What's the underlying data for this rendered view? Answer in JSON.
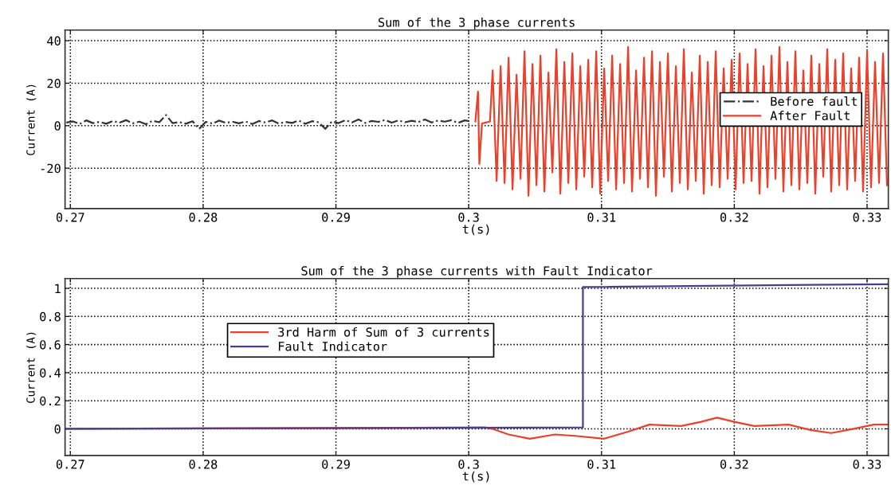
{
  "chart_data": [
    {
      "type": "line",
      "title": "Sum of the 3 phase currents",
      "xlabel": "t(s)",
      "ylabel": "Current (A)",
      "xlim": [
        0.2696,
        0.3316
      ],
      "xticks": [
        0.27,
        0.28,
        0.29,
        0.3,
        0.31,
        0.32,
        0.33
      ],
      "ylim": [
        -39,
        45
      ],
      "yticks": [
        -20,
        0,
        20,
        40
      ],
      "grid": true,
      "legend": "right",
      "series": [
        {
          "name": "Before fault",
          "color": "#333333",
          "line_style": "dashdot",
          "x": [
            0.2697,
            0.2702,
            0.2707,
            0.2712,
            0.2717,
            0.2722,
            0.2727,
            0.2732,
            0.2737,
            0.2742,
            0.2747,
            0.2752,
            0.2757,
            0.2762,
            0.2767,
            0.2772,
            0.2777,
            0.2782,
            0.2787,
            0.2792,
            0.2797,
            0.2802,
            0.2807,
            0.2812,
            0.2817,
            0.2822,
            0.2827,
            0.2832,
            0.2837,
            0.2842,
            0.2847,
            0.2852,
            0.2857,
            0.2862,
            0.2867,
            0.2872,
            0.2877,
            0.2882,
            0.2887,
            0.2892,
            0.2897,
            0.2902,
            0.2907,
            0.2912,
            0.2917,
            0.2922,
            0.2927,
            0.2932,
            0.2937,
            0.2942,
            0.2947,
            0.2952,
            0.2957,
            0.2962,
            0.2967,
            0.2972,
            0.2977,
            0.2982,
            0.2987,
            0.2992,
            0.2997,
            0.3002
          ],
          "values": [
            1.5,
            2,
            0.8,
            2.5,
            1.2,
            1.8,
            0.9,
            2.2,
            1.4,
            2.6,
            1.1,
            1.9,
            0.7,
            2.3,
            1.6,
            5,
            1.2,
            1.7,
            0.9,
            2.1,
            -1.5,
            1.8,
            1.0,
            2.4,
            1.3,
            1.9,
            1.1,
            2.0,
            0.8,
            2.2,
            1.5,
            2.5,
            1.0,
            1.8,
            1.3,
            2.4,
            0.9,
            2.1,
            1.6,
            -1.5,
            2.0,
            1.2,
            2.6,
            1.5,
            2.9,
            1.3,
            2.2,
            1.8,
            2.7,
            1.4,
            2.5,
            1.6,
            2.3,
            1.7,
            2.9,
            1.5,
            2.4,
            1.9,
            2.6,
            1.3,
            2.5,
            2.0
          ]
        },
        {
          "name": "After Fault",
          "color": "#e8412c",
          "line_style": "solid",
          "x": [
            0.3005,
            0.3007,
            0.3008,
            0.301,
            0.3016,
            0.3018,
            0.3021,
            0.3024,
            0.3027,
            0.303,
            0.3033,
            0.3036,
            0.3039,
            0.3042,
            0.3045,
            0.3048,
            0.3051,
            0.3054,
            0.3057,
            0.306,
            0.3063,
            0.3066,
            0.3069,
            0.3072,
            0.3075,
            0.3078,
            0.3081,
            0.3084,
            0.3087,
            0.309,
            0.3093,
            0.3096,
            0.3099,
            0.3102,
            0.3105,
            0.3108,
            0.3111,
            0.3114,
            0.3117,
            0.312,
            0.3123,
            0.3126,
            0.3129,
            0.3132,
            0.3135,
            0.3138,
            0.3141,
            0.3144,
            0.3147,
            0.315,
            0.3153,
            0.3156,
            0.3159,
            0.3162,
            0.3165,
            0.3168,
            0.3171,
            0.3174,
            0.3177,
            0.318,
            0.3183,
            0.3186,
            0.3189,
            0.3192,
            0.3195,
            0.3198,
            0.3201,
            0.3204,
            0.3207,
            0.321,
            0.3213,
            0.3216,
            0.3219,
            0.3222,
            0.3225,
            0.3228,
            0.3231,
            0.3234,
            0.3237,
            0.324,
            0.3243,
            0.3246,
            0.3249,
            0.3252,
            0.3255,
            0.3258,
            0.3261,
            0.3264,
            0.3267,
            0.327,
            0.3273,
            0.3276,
            0.3279,
            0.3282,
            0.3285,
            0.3288,
            0.3291,
            0.3294,
            0.3297,
            0.33,
            0.3303,
            0.3306,
            0.3309,
            0.3312,
            0.3315
          ],
          "values": [
            2,
            16,
            -18,
            1,
            2,
            26,
            -26,
            28,
            -27,
            32,
            -30,
            24,
            -25,
            35,
            -33,
            29,
            -28,
            33,
            -31,
            25,
            -22,
            36,
            -32,
            30,
            -27,
            34,
            -30,
            28,
            -24,
            31,
            -29,
            35,
            -32,
            27,
            -26,
            33,
            -30,
            29,
            -27,
            37,
            -31,
            26,
            -25,
            32,
            -29,
            35,
            -33,
            30,
            -24,
            34,
            -31,
            28,
            -27,
            36,
            -30,
            25,
            -26,
            33,
            -32,
            30,
            -28,
            35,
            -29,
            27,
            -25,
            31,
            -30,
            34,
            -27,
            29,
            -26,
            36,
            -32,
            28,
            -29,
            33,
            -25,
            37,
            -31,
            30,
            -28,
            35,
            -30,
            26,
            -27,
            33,
            -32,
            29,
            -24,
            36,
            -31,
            31,
            -28,
            34,
            -30,
            27,
            -26,
            32,
            -31,
            35,
            -29,
            30,
            -27,
            34,
            -28
          ]
        }
      ]
    },
    {
      "type": "line",
      "title": "Sum of the 3 phase currents with Fault Indicator",
      "xlabel": "t(s)",
      "ylabel": "Current (A)",
      "xlim": [
        0.2696,
        0.3316
      ],
      "xticks": [
        0.27,
        0.28,
        0.29,
        0.3,
        0.31,
        0.32,
        0.33
      ],
      "ylim": [
        -0.19,
        1.07
      ],
      "yticks": [
        0,
        0.2,
        0.4,
        0.6,
        0.8,
        1
      ],
      "grid": true,
      "legend": "top left",
      "series": [
        {
          "name": "3rd Harm of Sum of 3 currents",
          "color": "#e8412c",
          "x": [
            0.2696,
            0.3008,
            0.3012,
            0.3018,
            0.303,
            0.3046,
            0.3065,
            0.308,
            0.3102,
            0.312,
            0.3136,
            0.316,
            0.3175,
            0.3187,
            0.32,
            0.3215,
            0.3241,
            0.3258,
            0.3273,
            0.329,
            0.3305,
            0.3316
          ],
          "values": [
            0,
            0.01,
            0.01,
            0,
            -0.04,
            -0.07,
            -0.04,
            -0.05,
            -0.07,
            -0.02,
            0.03,
            0.02,
            0.05,
            0.08,
            0.05,
            0.02,
            0.03,
            -0.01,
            -0.03,
            0.0,
            0.03,
            0.03
          ]
        },
        {
          "name": "Fault Indicator",
          "color": "#4a3f8c",
          "x": [
            0.2696,
            0.3086,
            0.3086,
            0.3316
          ],
          "values": [
            0,
            0.01,
            1.01,
            1.03
          ]
        }
      ]
    }
  ]
}
